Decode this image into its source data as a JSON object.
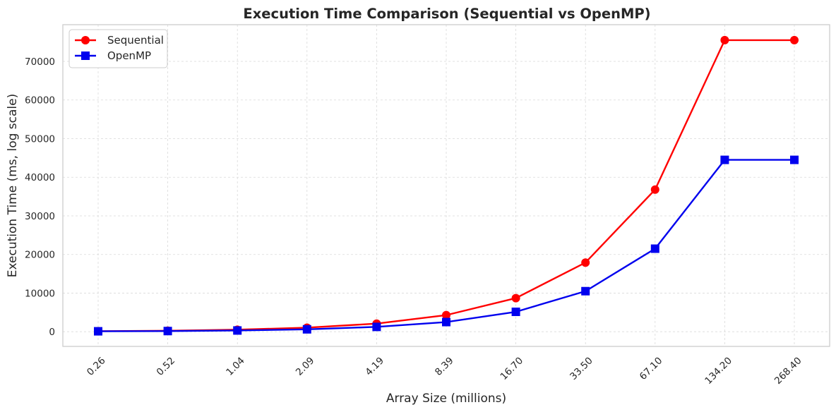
{
  "chart_data": {
    "type": "line",
    "title": "Execution Time Comparison (Sequential vs OpenMP)",
    "xlabel": "Array Size (millions)",
    "ylabel": "Execution Time (ms, log scale)",
    "categories": [
      "0.26",
      "0.52",
      "1.04",
      "2.09",
      "4.19",
      "8.39",
      "16.70",
      "33.50",
      "67.10",
      "134.20",
      "268.40"
    ],
    "ylim": [
      -3800,
      79500
    ],
    "yticks": [
      0,
      10000,
      20000,
      30000,
      40000,
      50000,
      60000,
      70000
    ],
    "grid": true,
    "legend_position": "top-left",
    "series": [
      {
        "name": "Sequential",
        "color": "#ff0000",
        "marker": "circle",
        "values": [
          130,
          260,
          520,
          1050,
          2100,
          4300,
          8700,
          17900,
          36800,
          75500,
          75500
        ]
      },
      {
        "name": "OpenMP",
        "color": "#0000ee",
        "marker": "square",
        "values": [
          110,
          170,
          320,
          620,
          1250,
          2500,
          5150,
          10500,
          21500,
          44500,
          44500
        ]
      }
    ]
  }
}
